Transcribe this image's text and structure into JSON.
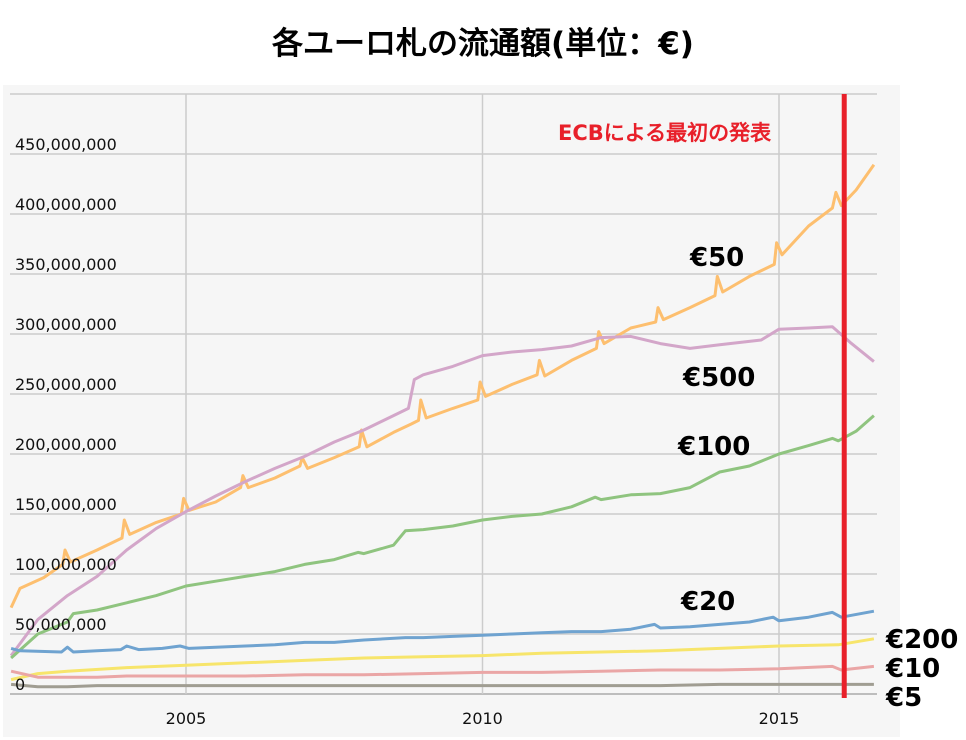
{
  "chart_data": {
    "type": "line",
    "title": "各ユーロ札の流通額(単位：€)",
    "xlabel": "",
    "ylabel": "",
    "xlim": [
      2002,
      2016.6
    ],
    "ylim": [
      0,
      500000000
    ],
    "x_ticks": [
      {
        "value": 2005,
        "label": "2005"
      },
      {
        "value": 2010,
        "label": "2010"
      },
      {
        "value": 2015,
        "label": "2015"
      }
    ],
    "y_ticks": [
      {
        "value": 0,
        "label": "0"
      },
      {
        "value": 50000000,
        "label": "50,000,000"
      },
      {
        "value": 100000000,
        "label": "100,000,000"
      },
      {
        "value": 150000000,
        "label": "150,000,000"
      },
      {
        "value": 200000000,
        "label": "200,000,000"
      },
      {
        "value": 250000000,
        "label": "250,000,000"
      },
      {
        "value": 300000000,
        "label": "300,000,000"
      },
      {
        "value": 350000000,
        "label": "350,000,000"
      },
      {
        "value": 400000000,
        "label": "400,000,000"
      },
      {
        "value": 450000000,
        "label": "450,000,000"
      }
    ],
    "grid": true,
    "annotation": {
      "text": "ECBによる最初の発表",
      "x": 2016.1,
      "color": "#e8202a"
    },
    "unit": "millions in series values (×1,000,000)",
    "series": [
      {
        "name": "€50",
        "color": "#fdbf6f",
        "points": [
          [
            2002.05,
            72
          ],
          [
            2002.2,
            88
          ],
          [
            2002.6,
            97
          ],
          [
            2002.92,
            108
          ],
          [
            2002.96,
            120
          ],
          [
            2003.05,
            110
          ],
          [
            2003.5,
            120
          ],
          [
            2003.92,
            130
          ],
          [
            2003.96,
            145
          ],
          [
            2004.05,
            133
          ],
          [
            2004.5,
            143
          ],
          [
            2004.92,
            150
          ],
          [
            2004.96,
            163
          ],
          [
            2005.05,
            153
          ],
          [
            2005.5,
            160
          ],
          [
            2005.92,
            172
          ],
          [
            2005.96,
            182
          ],
          [
            2006.05,
            172
          ],
          [
            2006.5,
            180
          ],
          [
            2006.92,
            190
          ],
          [
            2006.96,
            197
          ],
          [
            2007.05,
            188
          ],
          [
            2007.5,
            197
          ],
          [
            2007.92,
            206
          ],
          [
            2007.96,
            220
          ],
          [
            2008.05,
            206
          ],
          [
            2008.5,
            218
          ],
          [
            2008.8,
            225
          ],
          [
            2008.92,
            228
          ],
          [
            2008.96,
            245
          ],
          [
            2009.05,
            230
          ],
          [
            2009.5,
            238
          ],
          [
            2009.92,
            245
          ],
          [
            2009.96,
            260
          ],
          [
            2010.05,
            248
          ],
          [
            2010.5,
            258
          ],
          [
            2010.92,
            266
          ],
          [
            2010.96,
            278
          ],
          [
            2011.05,
            265
          ],
          [
            2011.5,
            278
          ],
          [
            2011.92,
            288
          ],
          [
            2011.96,
            302
          ],
          [
            2012.05,
            292
          ],
          [
            2012.5,
            305
          ],
          [
            2012.92,
            310
          ],
          [
            2012.96,
            322
          ],
          [
            2013.05,
            312
          ],
          [
            2013.5,
            322
          ],
          [
            2013.92,
            332
          ],
          [
            2013.96,
            348
          ],
          [
            2014.05,
            335
          ],
          [
            2014.5,
            348
          ],
          [
            2014.92,
            358
          ],
          [
            2014.96,
            376
          ],
          [
            2015.05,
            366
          ],
          [
            2015.5,
            390
          ],
          [
            2015.9,
            405
          ],
          [
            2015.96,
            418
          ],
          [
            2016.05,
            407
          ],
          [
            2016.3,
            420
          ],
          [
            2016.6,
            441
          ]
        ]
      },
      {
        "name": "€500",
        "color": "#d3a6c9",
        "points": [
          [
            2002.05,
            32
          ],
          [
            2002.5,
            62
          ],
          [
            2003,
            82
          ],
          [
            2003.5,
            98
          ],
          [
            2004,
            120
          ],
          [
            2004.5,
            138
          ],
          [
            2005,
            152
          ],
          [
            2005.5,
            165
          ],
          [
            2006,
            177
          ],
          [
            2006.5,
            188
          ],
          [
            2007,
            198
          ],
          [
            2007.5,
            210
          ],
          [
            2008,
            220
          ],
          [
            2008.5,
            232
          ],
          [
            2008.75,
            238
          ],
          [
            2008.85,
            262
          ],
          [
            2009,
            266
          ],
          [
            2009.5,
            273
          ],
          [
            2010,
            282
          ],
          [
            2010.5,
            285
          ],
          [
            2011,
            287
          ],
          [
            2011.5,
            290
          ],
          [
            2012,
            297
          ],
          [
            2012.5,
            298
          ],
          [
            2013,
            292
          ],
          [
            2013.5,
            288
          ],
          [
            2014,
            291
          ],
          [
            2014.7,
            295
          ],
          [
            2015,
            304
          ],
          [
            2015.5,
            305
          ],
          [
            2015.9,
            306
          ],
          [
            2016.2,
            293
          ],
          [
            2016.6,
            277
          ]
        ]
      },
      {
        "name": "€100",
        "color": "#8fc47f",
        "points": [
          [
            2002.05,
            30
          ],
          [
            2002.5,
            50
          ],
          [
            2003,
            60
          ],
          [
            2003.1,
            67
          ],
          [
            2003.5,
            70
          ],
          [
            2004,
            76
          ],
          [
            2004.5,
            82
          ],
          [
            2005,
            90
          ],
          [
            2005.5,
            94
          ],
          [
            2006,
            98
          ],
          [
            2006.5,
            102
          ],
          [
            2007,
            108
          ],
          [
            2007.5,
            112
          ],
          [
            2007.9,
            118
          ],
          [
            2008,
            117
          ],
          [
            2008.5,
            124
          ],
          [
            2008.7,
            136
          ],
          [
            2009,
            137
          ],
          [
            2009.5,
            140
          ],
          [
            2010,
            145
          ],
          [
            2010.5,
            148
          ],
          [
            2011,
            150
          ],
          [
            2011.5,
            156
          ],
          [
            2011.9,
            164
          ],
          [
            2012,
            162
          ],
          [
            2012.5,
            166
          ],
          [
            2013,
            167
          ],
          [
            2013.5,
            172
          ],
          [
            2014,
            185
          ],
          [
            2014.5,
            190
          ],
          [
            2015,
            200
          ],
          [
            2015.5,
            207
          ],
          [
            2015.9,
            213
          ],
          [
            2016,
            211
          ],
          [
            2016.3,
            219
          ],
          [
            2016.6,
            232
          ]
        ]
      },
      {
        "name": "€20",
        "color": "#6fa3d0",
        "points": [
          [
            2002.05,
            38
          ],
          [
            2002.2,
            36
          ],
          [
            2002.9,
            35
          ],
          [
            2003,
            39
          ],
          [
            2003.1,
            35
          ],
          [
            2003.5,
            36
          ],
          [
            2003.9,
            37
          ],
          [
            2004,
            40
          ],
          [
            2004.2,
            37
          ],
          [
            2004.6,
            38
          ],
          [
            2004.9,
            40
          ],
          [
            2005.05,
            38
          ],
          [
            2005.5,
            39
          ],
          [
            2006,
            40
          ],
          [
            2006.5,
            41
          ],
          [
            2007,
            43
          ],
          [
            2007.5,
            43
          ],
          [
            2008,
            45
          ],
          [
            2008.7,
            47
          ],
          [
            2009,
            47
          ],
          [
            2009.5,
            48
          ],
          [
            2010,
            49
          ],
          [
            2010.5,
            50
          ],
          [
            2011,
            51
          ],
          [
            2011.5,
            52
          ],
          [
            2012,
            52
          ],
          [
            2012.5,
            54
          ],
          [
            2012.9,
            58
          ],
          [
            2013,
            55
          ],
          [
            2013.5,
            56
          ],
          [
            2014,
            58
          ],
          [
            2014.5,
            60
          ],
          [
            2014.9,
            64
          ],
          [
            2015,
            61
          ],
          [
            2015.5,
            64
          ],
          [
            2015.9,
            68
          ],
          [
            2016.05,
            64
          ],
          [
            2016.6,
            69
          ]
        ]
      },
      {
        "name": "€200",
        "color": "#f7e56b",
        "points": [
          [
            2002.05,
            12
          ],
          [
            2002.5,
            17
          ],
          [
            2003,
            19
          ],
          [
            2004,
            22
          ],
          [
            2005,
            24
          ],
          [
            2006,
            26
          ],
          [
            2007,
            28
          ],
          [
            2008,
            30
          ],
          [
            2009,
            31
          ],
          [
            2010,
            32
          ],
          [
            2011,
            34
          ],
          [
            2012,
            35
          ],
          [
            2013,
            36
          ],
          [
            2014,
            38
          ],
          [
            2015,
            40
          ],
          [
            2016,
            41
          ],
          [
            2016.6,
            46
          ]
        ]
      },
      {
        "name": "€10",
        "color": "#eaa6a6",
        "points": [
          [
            2002.05,
            19
          ],
          [
            2002.5,
            14
          ],
          [
            2003,
            14
          ],
          [
            2003.5,
            14
          ],
          [
            2004,
            15
          ],
          [
            2005,
            15
          ],
          [
            2006,
            15
          ],
          [
            2007,
            16
          ],
          [
            2008,
            16
          ],
          [
            2009,
            17
          ],
          [
            2010,
            18
          ],
          [
            2011,
            18
          ],
          [
            2012,
            19
          ],
          [
            2013,
            20
          ],
          [
            2014,
            20
          ],
          [
            2015,
            21
          ],
          [
            2015.9,
            23
          ],
          [
            2016.05,
            20
          ],
          [
            2016.6,
            23
          ]
        ]
      },
      {
        "name": "€5",
        "color": "#a09d92",
        "points": [
          [
            2002.05,
            8
          ],
          [
            2002.5,
            6
          ],
          [
            2003,
            6
          ],
          [
            2003.5,
            7
          ],
          [
            2004,
            7
          ],
          [
            2005,
            7
          ],
          [
            2006,
            7
          ],
          [
            2007,
            7
          ],
          [
            2008,
            7
          ],
          [
            2009,
            7
          ],
          [
            2010,
            7
          ],
          [
            2011,
            7
          ],
          [
            2012,
            7
          ],
          [
            2013,
            7
          ],
          [
            2014,
            8
          ],
          [
            2015,
            8
          ],
          [
            2016,
            8
          ],
          [
            2016.6,
            8
          ]
        ]
      }
    ]
  }
}
